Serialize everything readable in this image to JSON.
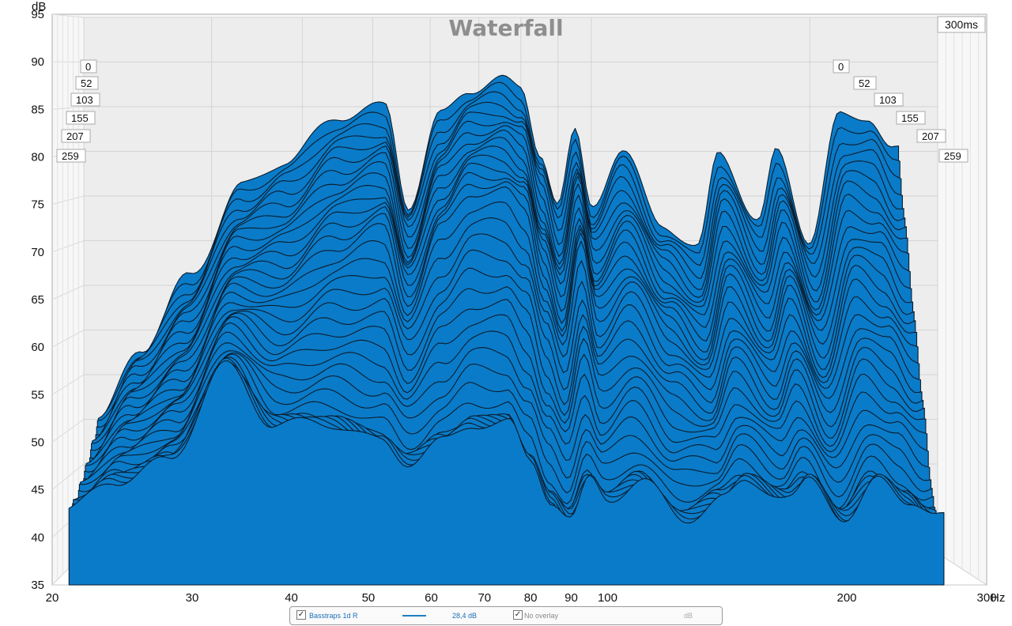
{
  "chart_data": {
    "type": "area",
    "title": "Waterfall",
    "ylabel": "dB",
    "xlabel": "Hz",
    "time_range_label": "300ms",
    "y_ticks": [
      "95",
      "90",
      "85",
      "80",
      "75",
      "70",
      "65",
      "60",
      "55",
      "50",
      "45",
      "40",
      "35"
    ],
    "ylim": [
      35,
      95
    ],
    "x_ticks": [
      "20",
      "30",
      "40",
      "50",
      "60",
      "70",
      "80",
      "90",
      "100",
      "200",
      "300"
    ],
    "x_scale": "log",
    "xlim": [
      20,
      300
    ],
    "time_slices_ms": [
      "0",
      "52",
      "103",
      "155",
      "207",
      "259"
    ],
    "n_slices": 36,
    "series_color": "#0a7bc8",
    "series": [
      {
        "time_ms": 0,
        "points": [
          [
            21,
            50
          ],
          [
            24,
            58
          ],
          [
            28,
            66
          ],
          [
            33,
            76
          ],
          [
            38,
            79
          ],
          [
            45,
            84
          ],
          [
            52,
            85
          ],
          [
            56,
            74
          ],
          [
            62,
            84
          ],
          [
            68,
            87
          ],
          [
            75,
            88
          ],
          [
            80,
            87
          ],
          [
            85,
            80
          ],
          [
            90,
            74
          ],
          [
            95,
            82
          ],
          [
            100,
            74
          ],
          [
            110,
            80
          ],
          [
            125,
            72
          ],
          [
            140,
            69
          ],
          [
            150,
            80
          ],
          [
            170,
            72
          ],
          [
            180,
            80
          ],
          [
            200,
            70
          ],
          [
            220,
            84
          ],
          [
            240,
            84
          ],
          [
            260,
            80
          ]
        ]
      },
      {
        "time_ms": 103,
        "points": [
          [
            21,
            46
          ],
          [
            24,
            52
          ],
          [
            28,
            56
          ],
          [
            33,
            66
          ],
          [
            38,
            66
          ],
          [
            45,
            70
          ],
          [
            52,
            72
          ],
          [
            56,
            64
          ],
          [
            62,
            72
          ],
          [
            68,
            76
          ],
          [
            75,
            76
          ],
          [
            80,
            74
          ],
          [
            85,
            66
          ],
          [
            90,
            60
          ],
          [
            95,
            70
          ],
          [
            100,
            62
          ],
          [
            110,
            66
          ],
          [
            125,
            60
          ],
          [
            140,
            56
          ],
          [
            150,
            64
          ],
          [
            170,
            58
          ],
          [
            180,
            64
          ],
          [
            200,
            56
          ],
          [
            220,
            66
          ],
          [
            240,
            64
          ],
          [
            260,
            60
          ]
        ]
      },
      {
        "time_ms": 207,
        "points": [
          [
            21,
            43
          ],
          [
            24,
            46
          ],
          [
            28,
            48
          ],
          [
            33,
            58
          ],
          [
            38,
            52
          ],
          [
            45,
            52
          ],
          [
            52,
            50
          ],
          [
            56,
            48
          ],
          [
            62,
            50
          ],
          [
            68,
            52
          ],
          [
            75,
            52
          ],
          [
            80,
            48
          ],
          [
            85,
            44
          ],
          [
            90,
            42
          ],
          [
            95,
            46
          ],
          [
            100,
            44
          ],
          [
            110,
            46
          ],
          [
            125,
            42
          ],
          [
            140,
            44
          ],
          [
            150,
            46
          ],
          [
            170,
            44
          ],
          [
            180,
            46
          ],
          [
            200,
            42
          ],
          [
            220,
            46
          ],
          [
            240,
            44
          ],
          [
            260,
            42
          ]
        ]
      }
    ]
  },
  "legend": {
    "series_name": "Basstraps 1d  R",
    "value": "28,4 dB",
    "overlay": "No overlay",
    "unit": "dB"
  }
}
